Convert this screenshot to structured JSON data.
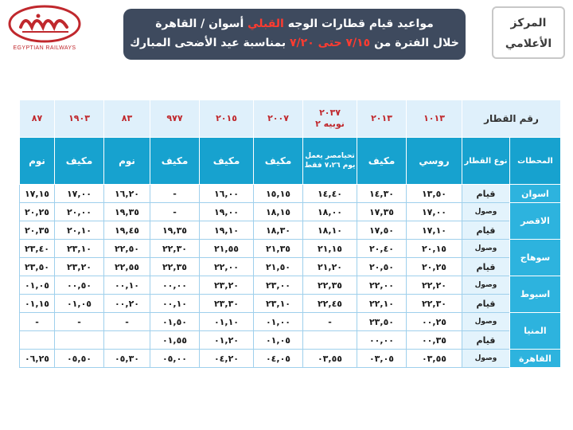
{
  "logo": {
    "arabic_text": "السكك الحديدية المصرية",
    "english_text": "EGYPTIAN RAILWAYS"
  },
  "banner": {
    "line1_a": "مواعيد قيام قطارات الوجه",
    "line1_red": "القبلي",
    "line1_b": "أسوان / القاهرة",
    "line2_a": "خلال الفترة من",
    "line2_red": "٧/١٥ حتى ٧/٢٠",
    "line2_b": "بمناسبة عيد الأضحى المبارك"
  },
  "center": {
    "line1": "المركز",
    "line2": "الأعلامي"
  },
  "table": {
    "train_number_label": "رقم القطار",
    "stations_label": "المحطات",
    "train_type_label": "نوع القطار",
    "trains": [
      {
        "number": "١٠١٣",
        "number2": "",
        "type": "روسي",
        "type_small": false
      },
      {
        "number": "٢٠١٣",
        "number2": "",
        "type": "مكيف",
        "type_small": false
      },
      {
        "number": "٢٠٣٧",
        "number2": "نوبيه ٢",
        "type": "تحيامصر يعمل يوم ٧،٢٦ فقط",
        "type_small": true
      },
      {
        "number": "٢٠٠٧",
        "number2": "",
        "type": "مكيف",
        "type_small": false
      },
      {
        "number": "٢٠١٥",
        "number2": "",
        "type": "مكيف",
        "type_small": false
      },
      {
        "number": "٩٧٧",
        "number2": "",
        "type": "مكيف",
        "type_small": false
      },
      {
        "number": "٨٣",
        "number2": "",
        "type": "نوم",
        "type_small": false
      },
      {
        "number": "١٩٠٣",
        "number2": "",
        "type": "مكيف",
        "type_small": false
      },
      {
        "number": "٨٧",
        "number2": "",
        "type": "نوم",
        "type_small": false
      }
    ],
    "rows": [
      {
        "station": "اسوان",
        "event": "قيام",
        "times": [
          "١٣,٥٠",
          "١٤,٣٠",
          "١٤,٤٠",
          "١٥,١٥",
          "١٦,٠٠",
          "-",
          "١٦,٢٠",
          "١٧,٠٠",
          "١٧,١٥"
        ]
      },
      {
        "station": "الاقصر",
        "event": "وصول",
        "times": [
          "١٧,٠٠",
          "١٧,٣٥",
          "١٨,٠٠",
          "١٨,١٥",
          "١٩,٠٠",
          "-",
          "١٩,٣٥",
          "٢٠,٠٠",
          "٢٠,٢٥"
        ]
      },
      {
        "station": "",
        "event": "قيام",
        "times": [
          "١٧,١٠",
          "١٧,٥٠",
          "١٨,١٠",
          "١٨,٣٠",
          "١٩,١٠",
          "١٩,٣٥",
          "١٩,٤٥",
          "٢٠,١٠",
          "٢٠,٣٥"
        ]
      },
      {
        "station": "سوهاج",
        "event": "وصول",
        "times": [
          "٢٠,١٥",
          "٢٠,٤٠",
          "٢١,١٥",
          "٢١,٣٥",
          "٢١,٥٥",
          "٢٢,٣٠",
          "٢٢,٥٠",
          "٢٣,١٠",
          "٢٣,٤٠"
        ]
      },
      {
        "station": "",
        "event": "قيام",
        "times": [
          "٢٠,٢٥",
          "٢٠,٥٠",
          "٢١,٢٠",
          "٢١,٥٠",
          "٢٢,٠٠",
          "٢٢,٣٥",
          "٢٢,٥٥",
          "٢٣,٢٠",
          "٢٣,٥٠"
        ]
      },
      {
        "station": "اسيوط",
        "event": "وصول",
        "times": [
          "٢٢,٢٠",
          "٢٢,٠٠",
          "٢٢,٣٥",
          "٢٣,٠٠",
          "٢٣,٢٠",
          "٠٠,٠٠",
          "٠٠,١٠",
          "٠٠,٥٠",
          "٠١,٠٥"
        ]
      },
      {
        "station": "",
        "event": "قيام",
        "times": [
          "٢٢,٣٠",
          "٢٢,١٠",
          "٢٢,٤٥",
          "٢٣,١٠",
          "٢٣,٣٠",
          "٠٠,١٠",
          "٠٠,٢٠",
          "٠١,٠٥",
          "٠١,١٥"
        ]
      },
      {
        "station": "المنيا",
        "event": "وصول",
        "times": [
          "٠٠,٢٥",
          "٢٣,٥٠",
          "-",
          "٠١,٠٠",
          "٠١,١٠",
          "٠١,٥٠",
          "-",
          "-",
          "-"
        ]
      },
      {
        "station": "",
        "event": "قيام",
        "times": [
          "٠٠,٣٥",
          "٠٠,٠٠",
          "",
          "٠١,٠٥",
          "٠١,٢٠",
          "٠١,٥٥",
          "",
          "",
          ""
        ]
      },
      {
        "station": "القاهرة",
        "event": "وصول",
        "times": [
          "٠٣,٥٥",
          "٠٣,٠٥",
          "٠٣,٥٥",
          "٠٤,٠٥",
          "٠٤,٢٠",
          "٠٥,٠٠",
          "٠٥,٣٠",
          "٠٥,٥٠",
          "٠٦,٢٥"
        ]
      }
    ]
  }
}
